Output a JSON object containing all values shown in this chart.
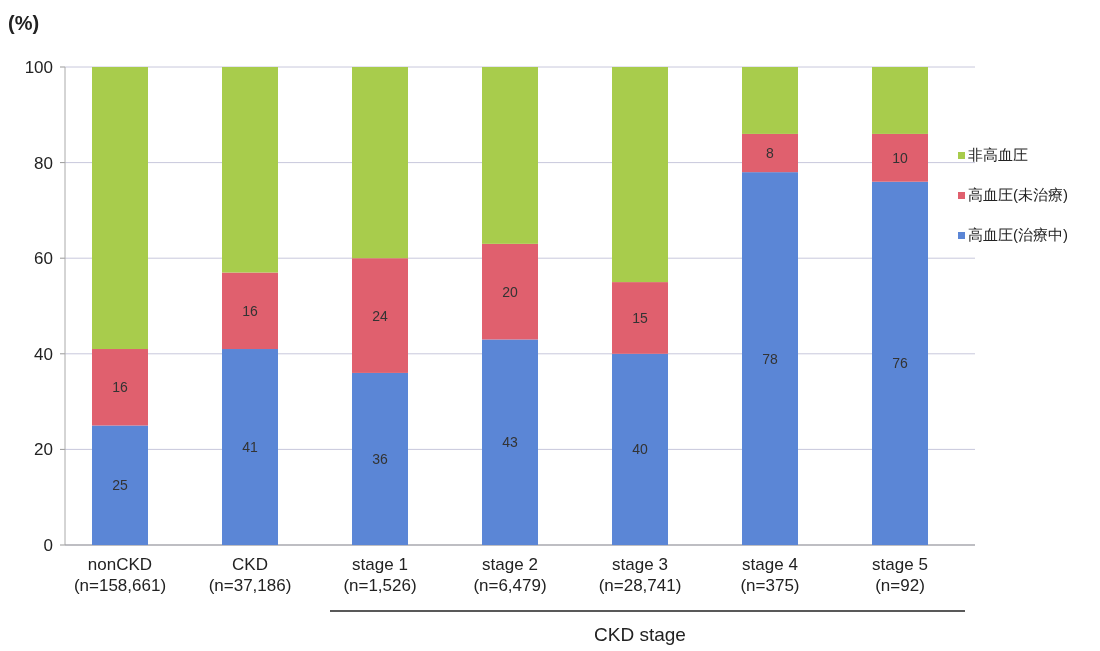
{
  "chart_data": {
    "type": "bar",
    "stacked": true,
    "ylabel": "(%)",
    "categories": [
      "nonCKD\n(n=158,661)",
      "CKD\n(n=37,186)",
      "stage 1\n(n=1,526)",
      "stage 2\n(n=6,479)",
      "stage 3\n(n=28,741)",
      "stage 4\n(n=375)",
      "stage 5\n(n=92)"
    ],
    "series": [
      {
        "name": "高血圧(治療中)",
        "color": "#5b86d6",
        "values": [
          25,
          41,
          36,
          43,
          40,
          78,
          76
        ],
        "value_labels": [
          "25",
          "41",
          "36",
          "43",
          "40",
          "78",
          "76"
        ]
      },
      {
        "name": "高血圧(未治療)",
        "color": "#e0606e",
        "values": [
          16,
          16,
          24,
          20,
          15,
          8,
          10
        ],
        "value_labels": [
          "16",
          "16",
          "24",
          "20",
          "15",
          "8",
          "10"
        ]
      },
      {
        "name": "非高血圧",
        "color": "#a8cc4c",
        "values": [
          59,
          43,
          40,
          37,
          45,
          14,
          14
        ]
      }
    ],
    "ylim": [
      0,
      100
    ],
    "yticks": [
      0,
      20,
      40,
      60,
      80,
      100
    ],
    "grid": "y",
    "legend": "right",
    "annotations": [
      "CKD stage"
    ]
  }
}
